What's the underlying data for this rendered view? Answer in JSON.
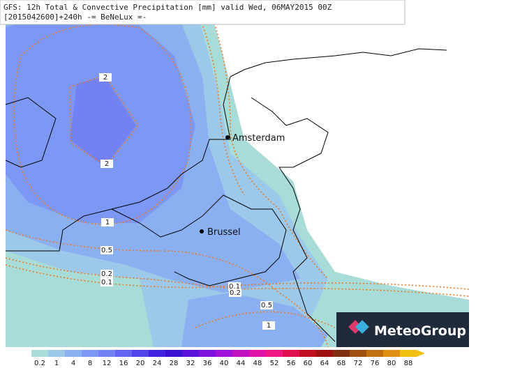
{
  "header": {
    "line1": "GFS: 12h Total & Convective Precipitation [mm] valid Wed, 06MAY2015 00Z",
    "line2": "[2015042600]+240h  -= BeNeLux =-"
  },
  "cities": [
    {
      "label": "Amsterdam"
    },
    {
      "label": "Brussel"
    }
  ],
  "contour_labels": [
    "2",
    "2",
    "1",
    "0.5",
    "0.2",
    "0.1",
    "0.1",
    "0.2",
    "0.5",
    "1"
  ],
  "colorbar": {
    "labels": [
      "0.2",
      "1",
      "4",
      "8",
      "12",
      "16",
      "20",
      "24",
      "28",
      "32",
      "36",
      "40",
      "44",
      "48",
      "52",
      "56",
      "60",
      "64",
      "68",
      "72",
      "76",
      "80",
      "88"
    ],
    "colors": [
      "#a8dcd8",
      "#9cc8ea",
      "#8ab0f2",
      "#7c98f4",
      "#7282f4",
      "#6464f0",
      "#5244e8",
      "#4224e0",
      "#3a12d2",
      "#5a12d8",
      "#8012e0",
      "#a012d8",
      "#c012c0",
      "#e012a8",
      "#f01880",
      "#e01050",
      "#c01020",
      "#a01010",
      "#803010",
      "#a05010",
      "#c07010",
      "#e09010",
      "#f0c010"
    ]
  },
  "logo": {
    "text": "MeteoGroup"
  }
}
